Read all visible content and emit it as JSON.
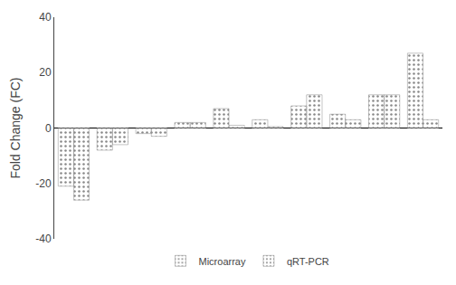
{
  "chart_data": {
    "type": "bar",
    "categories": [
      null,
      null,
      null,
      null,
      null,
      null,
      null,
      null,
      null,
      null
    ],
    "series": [
      {
        "name": "Microarray",
        "color": "#b5929e",
        "values": [
          -21,
          -8,
          -2,
          2,
          7,
          3,
          8,
          5,
          12,
          27
        ]
      },
      {
        "name": "qRT-PCR",
        "color": "#bfbe5a",
        "values": [
          -26,
          -6,
          -3,
          2,
          1,
          0.5,
          12,
          3,
          12,
          3
        ]
      }
    ],
    "ylabel": "Fold Change (FC)",
    "ylim": [
      -40,
      40
    ],
    "yticks": [
      -40,
      -20,
      0,
      20,
      40
    ],
    "grid": false,
    "legend": "bottom",
    "tick_labels": "y"
  }
}
